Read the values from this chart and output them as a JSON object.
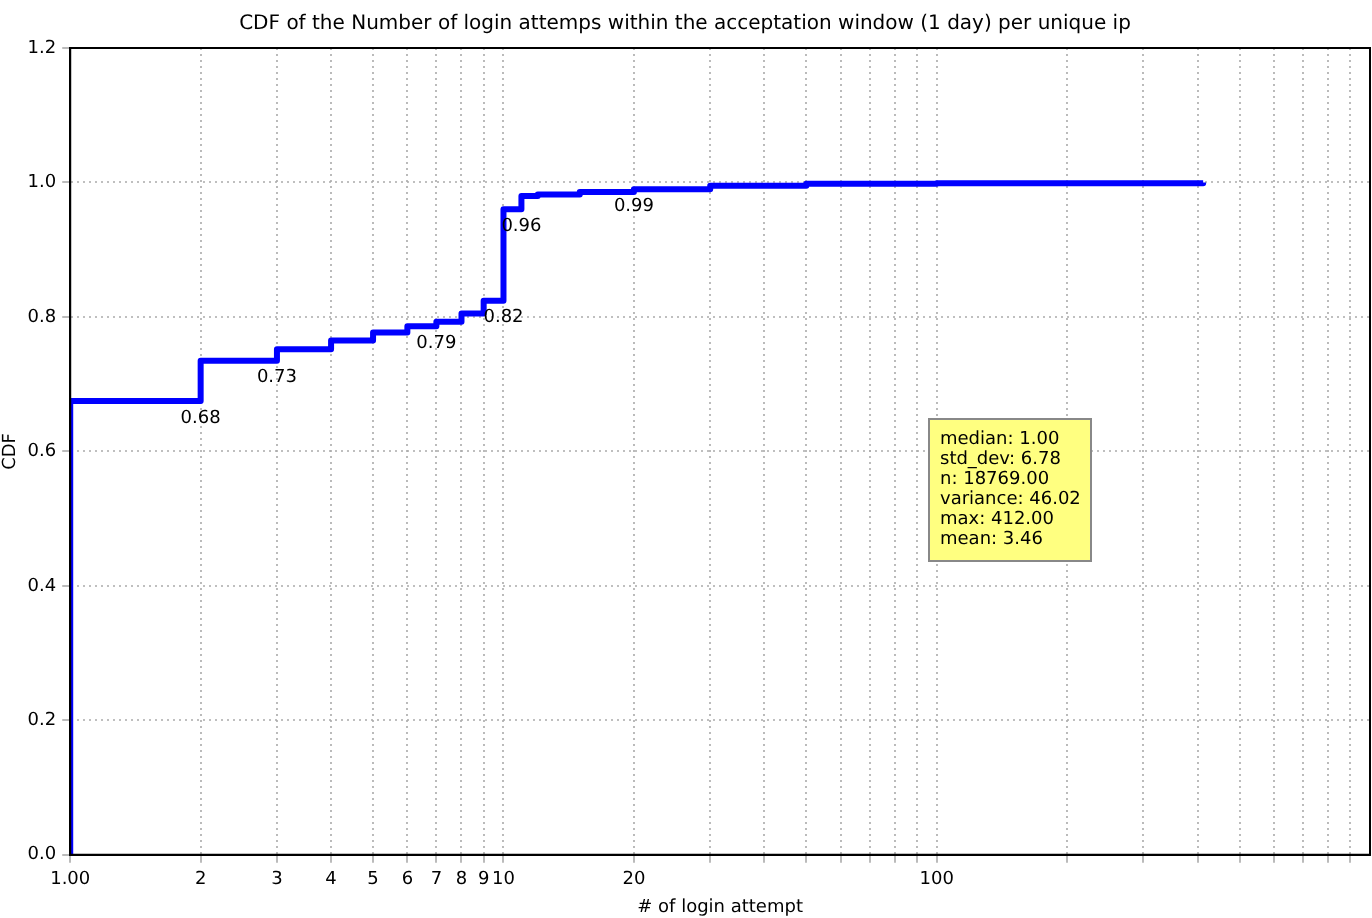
{
  "chart_data": {
    "type": "step",
    "title": "CDF of the Number of login attemps within the acceptation window (1 day) per unique ip",
    "xlabel": "# of login attempt",
    "ylabel": "CDF",
    "x": [
      1,
      1,
      2,
      3,
      4,
      5,
      6,
      7,
      8,
      9,
      10,
      11,
      12,
      15,
      20,
      30,
      50,
      100,
      412
    ],
    "values": [
      0,
      0.675,
      0.735,
      0.752,
      0.765,
      0.777,
      0.786,
      0.793,
      0.805,
      0.824,
      0.96,
      0.98,
      0.982,
      0.986,
      0.99,
      0.995,
      0.998,
      0.999,
      1.0
    ],
    "color": "#0000ff",
    "line_style": "solid",
    "marker": "none",
    "log": "x",
    "xlim": [
      1,
      1000
    ],
    "xticks": [
      {
        "value": 1,
        "label": "1.00"
      },
      2,
      3,
      4,
      5,
      6,
      7,
      8,
      9,
      10,
      20,
      {
        "value": 30,
        "label": null
      },
      {
        "value": 40,
        "label": null
      },
      {
        "value": 50,
        "label": null
      },
      {
        "value": 60,
        "label": null
      },
      {
        "value": 70,
        "label": null
      },
      {
        "value": 80,
        "label": null
      },
      {
        "value": 90,
        "label": null
      },
      100,
      {
        "value": 200,
        "label": null
      },
      {
        "value": 300,
        "label": null
      },
      {
        "value": 400,
        "label": null
      },
      {
        "value": 500,
        "label": null
      },
      {
        "value": 600,
        "label": null
      },
      {
        "value": 700,
        "label": null
      },
      {
        "value": 800,
        "label": null
      },
      {
        "value": 900,
        "label": null
      }
    ],
    "ylim": [
      0,
      1.2
    ],
    "yticks": [
      {
        "value": 0,
        "label": "0.0"
      },
      {
        "value": 0.2,
        "label": "0.2"
      },
      {
        "value": 0.4,
        "label": "0.4"
      },
      {
        "value": 0.6,
        "label": "0.6"
      },
      {
        "value": 0.8,
        "label": "0.8"
      },
      {
        "value": 1,
        "label": "1.0"
      },
      {
        "value": 1.2,
        "label": "1.2"
      }
    ],
    "grid": true,
    "legend": false,
    "annotations": [
      {
        "text": "0.68",
        "x": 2,
        "y": 0.675
      },
      {
        "text": "0.73",
        "x": 3,
        "y": 0.735
      },
      {
        "text": "0.79",
        "x": 7,
        "y": 0.786
      },
      {
        "text": "0.82",
        "x": 10,
        "y": 0.824
      },
      {
        "text": "0.96",
        "x": 11,
        "y": 0.96
      },
      {
        "text": "0.99",
        "x": 20,
        "y": 0.99
      },
      "median: 1.00\nstd_dev: 6.78\nn: 18769.00\nvariance: 46.02\nmax: 412.00\nmean: 3.46"
    ]
  }
}
